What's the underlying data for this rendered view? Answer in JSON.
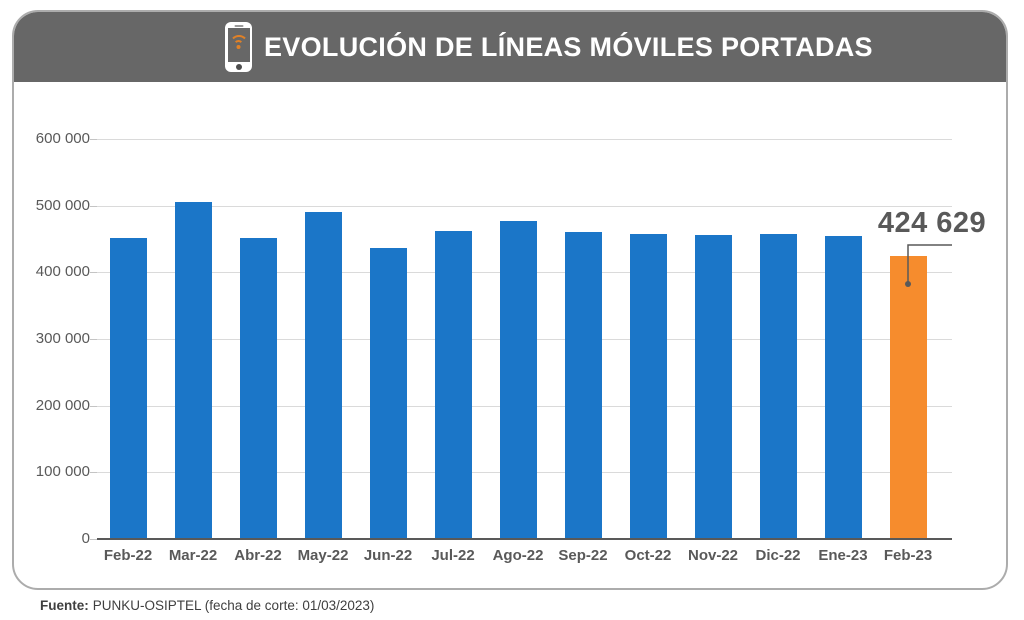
{
  "header": {
    "title": "EVOLUCIÓN DE LÍNEAS MÓVILES PORTADAS",
    "icon": "mobile-phone-wifi-icon",
    "bg": "#676767"
  },
  "footer": {
    "label": "Fuente:",
    "text": "PUNKU-OSIPTEL (fecha de corte: 01/03/2023)"
  },
  "colors": {
    "bar": "#1b76c8",
    "highlight": "#f68c2d",
    "grid": "#dadada",
    "axis_text": "#595959",
    "annotation": "#595959"
  },
  "chart_data": {
    "type": "bar",
    "title": "EVOLUCIÓN DE LÍNEAS MÓVILES PORTADAS",
    "categories": [
      "Feb-22",
      "Mar-22",
      "Abr-22",
      "May-22",
      "Jun-22",
      "Jul-22",
      "Ago-22",
      "Sep-22",
      "Oct-22",
      "Nov-22",
      "Dic-22",
      "Ene-23",
      "Feb-23"
    ],
    "values": [
      452000,
      506000,
      452000,
      491000,
      436000,
      462000,
      477000,
      460000,
      457000,
      456000,
      457000,
      454000,
      424629
    ],
    "highlight_index": 12,
    "xlabel": "",
    "ylabel": "",
    "ylim": [
      0,
      600000
    ],
    "yticks": [
      {
        "value": 600000,
        "label": "600 000"
      },
      {
        "value": 500000,
        "label": "500 000"
      },
      {
        "value": 400000,
        "label": "400 000"
      },
      {
        "value": 300000,
        "label": "300 000"
      },
      {
        "value": 200000,
        "label": "200 000"
      },
      {
        "value": 100000,
        "label": "100 000"
      },
      {
        "value": 0,
        "label": "0"
      }
    ],
    "grid": "horizontal",
    "legend": "none",
    "annotation": {
      "text": "424 629",
      "category": "Feb-23",
      "value": 424629
    }
  }
}
